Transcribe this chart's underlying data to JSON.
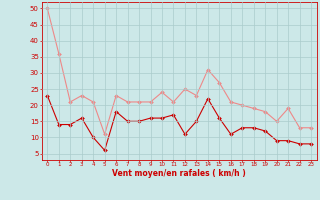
{
  "x": [
    0,
    1,
    2,
    3,
    4,
    5,
    6,
    7,
    8,
    9,
    10,
    11,
    12,
    13,
    14,
    15,
    16,
    17,
    18,
    19,
    20,
    21,
    22,
    23
  ],
  "wind_avg": [
    23,
    14,
    14,
    16,
    10,
    6,
    18,
    15,
    15,
    16,
    16,
    17,
    11,
    15,
    22,
    16,
    11,
    13,
    13,
    12,
    9,
    9,
    8,
    8
  ],
  "wind_gust": [
    50,
    36,
    21,
    23,
    21,
    11,
    23,
    21,
    21,
    21,
    24,
    21,
    25,
    23,
    31,
    27,
    21,
    20,
    19,
    18,
    15,
    19,
    13,
    13
  ],
  "bg_color": "#cce8e8",
  "grid_color": "#aacccc",
  "line_avg_color": "#cc0000",
  "line_gust_color": "#ee8888",
  "xlabel": "Vent moyen/en rafales ( km/h )",
  "xlabel_color": "#cc0000",
  "tick_color": "#cc0000",
  "spine_color": "#cc0000",
  "ylim": [
    3,
    52
  ],
  "yticks": [
    5,
    10,
    15,
    20,
    25,
    30,
    35,
    40,
    45,
    50
  ],
  "marker": "D",
  "markersize": 2.0,
  "linewidth": 0.8
}
